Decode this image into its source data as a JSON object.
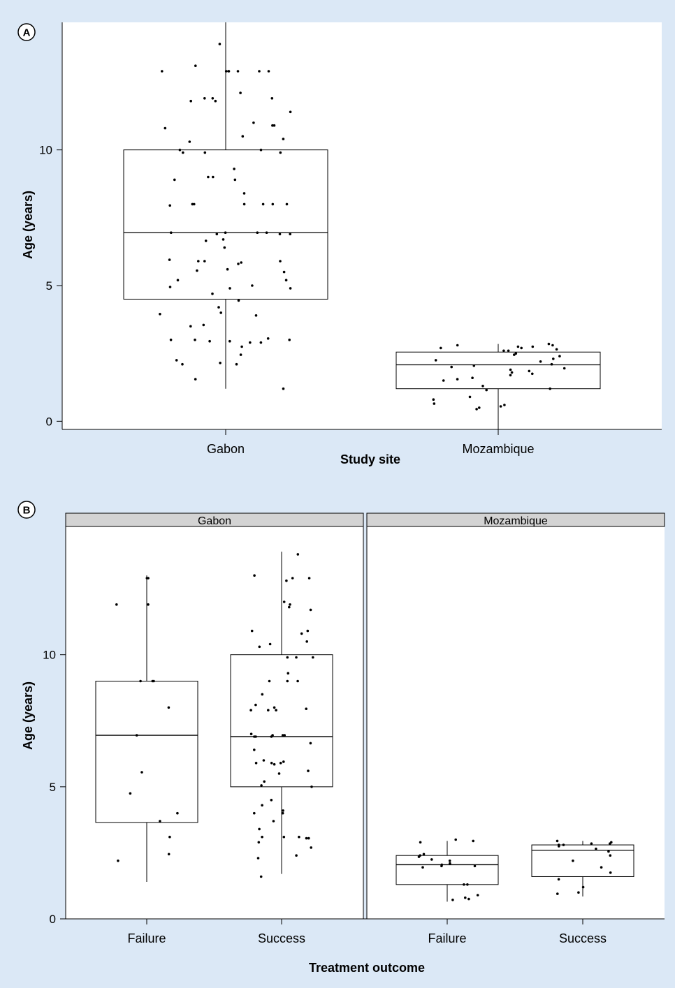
{
  "chart_data": [
    {
      "type": "box",
      "panel_label": "A",
      "xlabel": "Study site",
      "ylabel": "Age (years)",
      "categories": [
        "Gabon",
        "Mozambique"
      ],
      "ylim": [
        -0.3,
        14.7
      ],
      "yticks": [
        "0",
        "5",
        "10"
      ],
      "boxes": [
        {
          "category": "Gabon",
          "min": 1.2,
          "q1": 4.5,
          "median": 6.95,
          "q3": 10.0,
          "max": 14.7
        },
        {
          "category": "Mozambique",
          "min": -0.3,
          "q1": 1.2,
          "median": 2.08,
          "q3": 2.55,
          "max": 2.85
        }
      ],
      "points": [
        {
          "category": "Gabon",
          "y": [
            13.9,
            13.1,
            12.9,
            12.9,
            12.9,
            12.9,
            12.9,
            12.9,
            12.9,
            12.1,
            11.9,
            11.9,
            11.9,
            11.8,
            11.8,
            11.4,
            11.0,
            10.9,
            10.9,
            10.8,
            10.5,
            10.4,
            10.3,
            10.0,
            10.0,
            9.9,
            9.9,
            9.9,
            9.3,
            9.0,
            9.0,
            8.9,
            8.9,
            8.4,
            8.0,
            8.0,
            8.0,
            8.0,
            8.0,
            8.0,
            7.95,
            6.95,
            6.95,
            6.95,
            6.95,
            6.9,
            6.9,
            6.9,
            6.7,
            6.65,
            6.4,
            5.95,
            5.9,
            5.9,
            5.9,
            5.85,
            5.8,
            5.6,
            5.55,
            5.5,
            5.2,
            5.2,
            5.0,
            4.95,
            4.9,
            4.9,
            4.7,
            4.45,
            4.2,
            4.0,
            3.95,
            3.9,
            3.55,
            3.5,
            3.05,
            3.0,
            3.0,
            3.0,
            2.95,
            2.95,
            2.9,
            2.9,
            2.75,
            2.45,
            2.25,
            2.15,
            2.1,
            2.1,
            1.55,
            1.2
          ]
        },
        {
          "category": "Mozambique",
          "y": [
            2.85,
            2.8,
            2.8,
            2.75,
            2.75,
            2.7,
            2.7,
            2.65,
            2.6,
            2.6,
            2.5,
            2.45,
            2.4,
            2.3,
            2.25,
            2.2,
            2.1,
            2.05,
            2.0,
            1.95,
            1.9,
            1.85,
            1.8,
            1.75,
            1.7,
            1.6,
            1.55,
            1.5,
            1.3,
            1.2,
            1.15,
            0.9,
            0.8,
            0.65,
            0.6,
            0.55,
            0.5,
            0.45
          ]
        }
      ]
    },
    {
      "type": "box",
      "panel_label": "B",
      "xlabel": "Treatment outcome",
      "ylabel": "Age (years)",
      "facets": [
        "Gabon",
        "Mozambique"
      ],
      "categories": [
        "Failure",
        "Success"
      ],
      "ylim": [
        0,
        14.3
      ],
      "yticks": [
        "0",
        "5",
        "10"
      ],
      "boxes": [
        {
          "facet": "Gabon",
          "category": "Failure",
          "min": 1.4,
          "q1": 3.65,
          "median": 6.95,
          "q3": 9.0,
          "max": 13.0
        },
        {
          "facet": "Gabon",
          "category": "Success",
          "min": 1.7,
          "q1": 5.0,
          "median": 6.9,
          "q3": 10.0,
          "max": 13.9
        },
        {
          "facet": "Mozambique",
          "category": "Failure",
          "min": 0.65,
          "q1": 1.3,
          "median": 2.05,
          "q3": 2.4,
          "max": 2.95
        },
        {
          "facet": "Mozambique",
          "category": "Success",
          "min": 0.85,
          "q1": 1.6,
          "median": 2.6,
          "q3": 2.8,
          "max": 2.95
        }
      ],
      "points": [
        {
          "facet": "Gabon",
          "category": "Failure",
          "y": [
            12.9,
            12.9,
            11.9,
            11.9,
            9.0,
            9.0,
            9.0,
            8.0,
            6.95,
            5.55,
            4.75,
            4.0,
            3.7,
            3.1,
            2.45,
            2.2
          ]
        },
        {
          "facet": "Gabon",
          "category": "Success",
          "y": [
            13.8,
            13.0,
            12.9,
            12.9,
            12.8,
            12.0,
            11.9,
            11.8,
            11.7,
            10.9,
            10.9,
            10.8,
            10.5,
            10.4,
            10.3,
            9.9,
            9.9,
            9.9,
            9.3,
            9.0,
            9.0,
            9.0,
            8.5,
            8.1,
            8.0,
            7.95,
            7.9,
            7.9,
            7.9,
            7.0,
            6.95,
            6.95,
            6.95,
            6.9,
            6.9,
            6.9,
            6.65,
            6.4,
            6.0,
            5.95,
            5.9,
            5.9,
            5.9,
            5.85,
            5.6,
            5.5,
            5.2,
            5.05,
            5.0,
            4.5,
            4.3,
            4.1,
            4.0,
            4.0,
            3.7,
            3.4,
            3.1,
            3.1,
            3.1,
            3.05,
            3.05,
            2.9,
            2.7,
            2.4,
            2.3,
            1.6
          ]
        },
        {
          "facet": "Mozambique",
          "category": "Failure",
          "y": [
            3.0,
            2.95,
            2.9,
            2.45,
            2.4,
            2.35,
            2.25,
            2.2,
            2.1,
            2.05,
            2.0,
            2.0,
            1.95,
            1.3,
            1.3,
            0.9,
            0.8,
            0.75,
            0.72
          ]
        },
        {
          "facet": "Mozambique",
          "category": "Success",
          "y": [
            2.95,
            2.9,
            2.85,
            2.85,
            2.8,
            2.8,
            2.75,
            2.65,
            2.55,
            2.4,
            2.2,
            1.95,
            1.75,
            1.5,
            1.2,
            1.0,
            0.95
          ]
        }
      ]
    }
  ]
}
